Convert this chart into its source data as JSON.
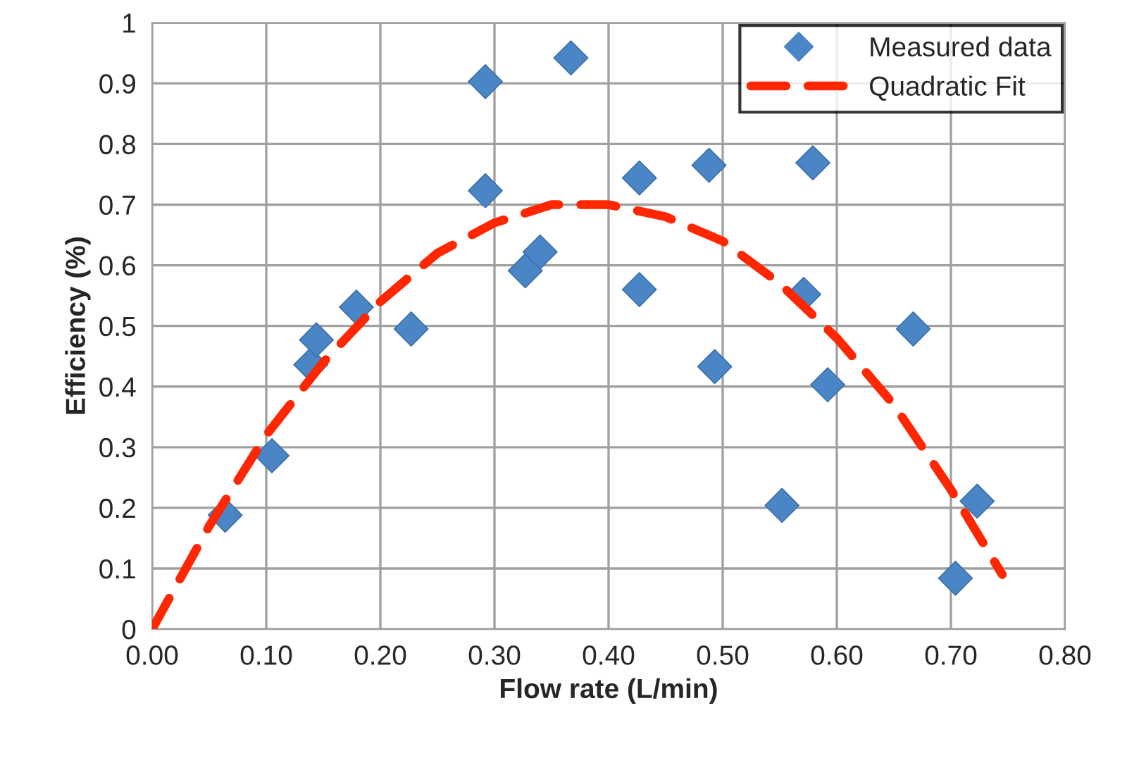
{
  "chart_data": {
    "type": "scatter",
    "xlabel": "Flow rate (L/min)",
    "ylabel": "Efficiency (%)",
    "xlim": [
      0,
      0.8
    ],
    "xticks": [
      {
        "value": 0,
        "label": "0.00"
      },
      {
        "value": 0.1,
        "label": "0.10"
      },
      {
        "value": 0.2,
        "label": "0.20"
      },
      {
        "value": 0.3,
        "label": "0.30"
      },
      {
        "value": 0.4,
        "label": "0.40"
      },
      {
        "value": 0.5,
        "label": "0.50"
      },
      {
        "value": 0.6,
        "label": "0.60"
      },
      {
        "value": 0.7,
        "label": "0.70"
      },
      {
        "value": 0.8,
        "label": "0.80"
      }
    ],
    "ylim": [
      0,
      1
    ],
    "yticks": [
      0,
      0.1,
      0.2,
      0.3,
      0.4,
      0.5,
      0.6,
      0.7,
      0.8,
      0.9,
      1
    ],
    "grid": true,
    "legend": "top right",
    "series": [
      {
        "name": "Measured data",
        "color": "#4a86c5",
        "marker": "diamond",
        "x": [
          0.064,
          0.105,
          0.139,
          0.144,
          0.179,
          0.227,
          0.292,
          0.292,
          0.327,
          0.34,
          0.367,
          0.427,
          0.427,
          0.488,
          0.493,
          0.552,
          0.571,
          0.579,
          0.592,
          0.667,
          0.704,
          0.723
        ],
        "values": [
          0.188,
          0.286,
          0.436,
          0.477,
          0.531,
          0.495,
          0.903,
          0.723,
          0.591,
          0.622,
          0.942,
          0.744,
          0.56,
          0.765,
          0.433,
          0.204,
          0.552,
          0.769,
          0.403,
          0.495,
          0.084,
          0.211
        ]
      },
      {
        "name": "Quadratic Fit",
        "type": "line",
        "color": "#ff2600",
        "line_style": "dashed",
        "x": [
          0,
          0.05,
          0.1,
          0.15,
          0.2,
          0.25,
          0.3,
          0.35,
          0.4,
          0.45,
          0.5,
          0.55,
          0.6,
          0.65,
          0.7,
          0.745
        ],
        "values": [
          0,
          0.17,
          0.32,
          0.44,
          0.54,
          0.62,
          0.67,
          0.7,
          0.7,
          0.68,
          0.64,
          0.57,
          0.48,
          0.37,
          0.23,
          0.09
        ]
      }
    ]
  }
}
